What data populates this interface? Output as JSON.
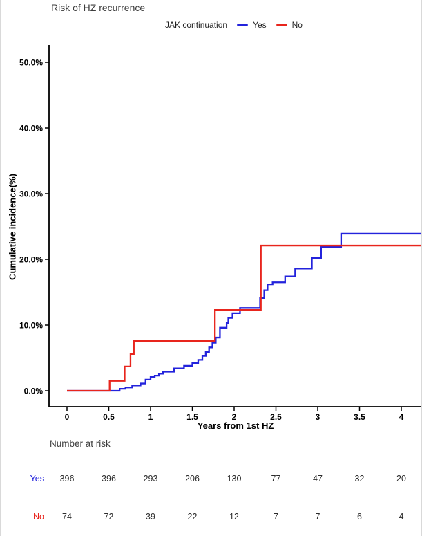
{
  "window": {
    "bg": "#ffffff",
    "edge_border": "#d9d9d9"
  },
  "title": "Risk of HZ recurrence",
  "legend": {
    "label": "JAK continuation",
    "items": [
      {
        "name": "Yes",
        "color": "#2323dc"
      },
      {
        "name": "No",
        "color": "#e8251d"
      }
    ]
  },
  "axes": {
    "x_label": "Years from 1st HZ",
    "y_label": "Cumulative incidence(%)"
  },
  "chart_data": {
    "type": "line",
    "variant": "step-cumulative-incidence",
    "title": "Risk of HZ recurrence",
    "xlabel": "Years from 1st HZ",
    "ylabel": "Cumulative incidence(%)",
    "xlim": [
      0,
      4.26
    ],
    "ylim": [
      0,
      52.6
    ],
    "grid": false,
    "legend_position": "top",
    "xticks": [
      0,
      0.5,
      1,
      1.5,
      2,
      2.5,
      3,
      3.5,
      4
    ],
    "xtick_labels": [
      "0",
      "0.5",
      "1",
      "1.5",
      "2",
      "2.5",
      "3",
      "3.5",
      "4"
    ],
    "yticks": [
      0,
      10,
      20,
      30,
      40,
      50
    ],
    "ytick_labels": [
      "0.0%",
      "10.0%",
      "20.0%",
      "30.0%",
      "40.0%",
      "50.0%"
    ],
    "series": [
      {
        "name": "Yes",
        "color": "#2323dc",
        "x_end": 4.26,
        "steps": [
          [
            0,
            0
          ],
          [
            0.63,
            0.3
          ],
          [
            0.7,
            0.5
          ],
          [
            0.78,
            0.8
          ],
          [
            0.88,
            1.1
          ],
          [
            0.94,
            1.7
          ],
          [
            1.0,
            2.1
          ],
          [
            1.05,
            2.3
          ],
          [
            1.1,
            2.6
          ],
          [
            1.15,
            2.9
          ],
          [
            1.28,
            3.4
          ],
          [
            1.4,
            3.8
          ],
          [
            1.5,
            4.2
          ],
          [
            1.57,
            4.7
          ],
          [
            1.62,
            5.3
          ],
          [
            1.66,
            5.9
          ],
          [
            1.7,
            6.6
          ],
          [
            1.74,
            7.3
          ],
          [
            1.78,
            8.1
          ],
          [
            1.83,
            9.6
          ],
          [
            1.91,
            10.3
          ],
          [
            1.93,
            11.1
          ],
          [
            1.98,
            11.8
          ],
          [
            2.07,
            12.6
          ],
          [
            2.31,
            14.1
          ],
          [
            2.36,
            15.3
          ],
          [
            2.4,
            16.2
          ],
          [
            2.46,
            16.5
          ],
          [
            2.61,
            17.4
          ],
          [
            2.73,
            18.6
          ],
          [
            2.93,
            20.2
          ],
          [
            3.04,
            21.9
          ],
          [
            3.28,
            23.9
          ]
        ]
      },
      {
        "name": "No",
        "color": "#e8251d",
        "x_end": 4.26,
        "steps": [
          [
            0,
            0
          ],
          [
            0.51,
            1.5
          ],
          [
            0.69,
            3.7
          ],
          [
            0.76,
            5.6
          ],
          [
            0.8,
            7.6
          ],
          [
            1.77,
            12.3
          ],
          [
            2.32,
            22.1
          ]
        ]
      }
    ]
  },
  "risk_table": {
    "title": "Number at risk",
    "rows": [
      {
        "label": "Yes",
        "color": "#2323dc",
        "values": [
          "396",
          "396",
          "293",
          "206",
          "130",
          "77",
          "47",
          "32",
          "20"
        ]
      },
      {
        "label": "No",
        "color": "#e8251d",
        "values": [
          "74",
          "72",
          "39",
          "22",
          "12",
          "7",
          "7",
          "6",
          "4"
        ]
      }
    ]
  }
}
